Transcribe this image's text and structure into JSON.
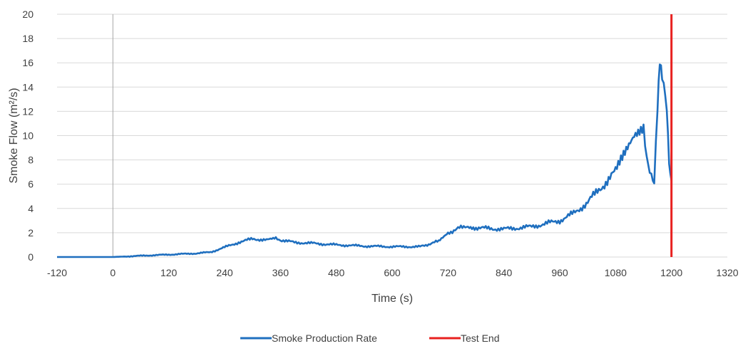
{
  "chart_data": {
    "type": "line",
    "title": "",
    "xlabel": "Time (s)",
    "ylabel": "Smoke Flow (m²/s)",
    "xlim": [
      -120,
      1320
    ],
    "ylim": [
      0,
      20
    ],
    "x_ticks": [
      -120,
      0,
      120,
      240,
      360,
      480,
      600,
      720,
      840,
      960,
      1080,
      1200,
      1320
    ],
    "y_ticks": [
      0,
      2,
      4,
      6,
      8,
      10,
      12,
      14,
      16,
      18,
      20
    ],
    "x_tick_labels": [
      "-120",
      "0",
      "120",
      "240",
      "360",
      "480",
      "600",
      "720",
      "840",
      "960",
      "1080",
      "1200",
      "1320"
    ],
    "y_tick_labels": [
      "0",
      "2",
      "4",
      "6",
      "8",
      "10",
      "12",
      "14",
      "16",
      "18",
      "20"
    ],
    "grid": "horizontal",
    "legend_position": "bottom",
    "zero_line_x": 0,
    "series": [
      {
        "name": "Smoke Production Rate",
        "color": "#1f6fbf",
        "x": [
          -120,
          -60,
          0,
          30,
          60,
          90,
          120,
          150,
          180,
          210,
          240,
          270,
          300,
          330,
          350,
          360,
          390,
          420,
          480,
          540,
          600,
          660,
          700,
          720,
          760,
          780,
          840,
          900,
          960,
          990,
          1020,
          1050,
          1080,
          1100,
          1120,
          1140,
          1150,
          1160,
          1163,
          1170,
          1175,
          1180,
          1190,
          1195,
          1200
        ],
        "y": [
          0,
          0,
          0,
          0.05,
          0.1,
          0.15,
          0.2,
          0.25,
          0.3,
          0.4,
          0.8,
          1.2,
          1.5,
          1.4,
          1.5,
          1.4,
          1.2,
          1.15,
          1.0,
          0.9,
          0.85,
          0.85,
          1.3,
          2.0,
          2.6,
          2.4,
          2.3,
          2.5,
          3.0,
          3.6,
          4.5,
          5.8,
          7.0,
          8.5,
          10.0,
          10.8,
          7.2,
          6.5,
          6.4,
          12.0,
          16.1,
          15.2,
          12.0,
          7.5,
          6.3
        ]
      },
      {
        "name": "Test End",
        "color": "#e8201f",
        "x": [
          1200,
          1200
        ],
        "y": [
          0,
          20
        ]
      }
    ]
  }
}
